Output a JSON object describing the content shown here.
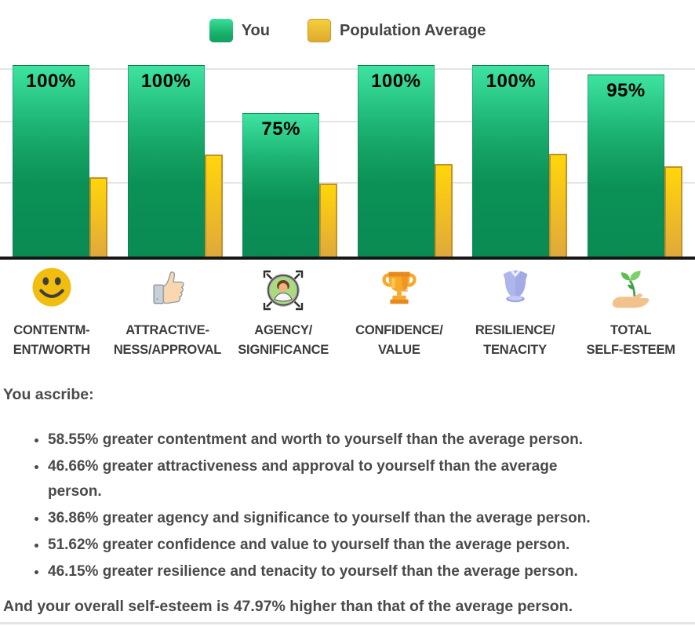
{
  "legend": {
    "you_label": "You",
    "avg_label": "Population Average"
  },
  "chart_data": {
    "type": "bar",
    "categories": [
      "Contentment/Worth",
      "Attractiveness/Approval",
      "Agency/Significance",
      "Confidence/Value",
      "Resilience/Tenacity",
      "Total Self-Esteem"
    ],
    "series": [
      {
        "name": "You",
        "color": "#12a263",
        "values": [
          100,
          100,
          75,
          100,
          100,
          95
        ],
        "value_labels": [
          "100%",
          "100%",
          "75%",
          "100%",
          "100%",
          "95%"
        ]
      },
      {
        "name": "Population Average",
        "color": "#eebc2e",
        "values": [
          41.45,
          53.34,
          38.14,
          48.38,
          53.85,
          47.03
        ],
        "value_labels": [
          "",
          "",
          "",
          "",
          "",
          ""
        ]
      }
    ],
    "ylim": [
      0,
      105
    ],
    "xlabel": "",
    "ylabel": "",
    "title": "",
    "grid": "horizontal",
    "legend_position": "top"
  },
  "category_display": [
    "CONTENTM-\nENT/WORTH",
    "ATTRACTIVE-\nNESS/APPROVAL",
    "AGENCY/\nSIGNIFICANCE",
    "CONFIDENCE/\nVALUE",
    "RESILIENCE/\nTENACITY",
    "TOTAL\nSELF-ESTEEM"
  ],
  "icons": [
    "smiley-icon",
    "thumbs-up-icon",
    "agency-person-icon",
    "trophy-icon",
    "armor-icon",
    "hand-plant-icon"
  ],
  "summary": {
    "heading": "You ascribe:",
    "bullets": [
      "58.55% greater contentment and worth to yourself than the average person.",
      "46.66% greater attractiveness and approval to yourself than the average\nperson.",
      "36.86% greater agency and significance to yourself than the average person.",
      "51.62% greater confidence and value to yourself than the average person.",
      "46.15% greater resilience and tenacity to yourself than the average person."
    ],
    "closing": "And your overall self-esteem is 47.97% higher than that of the average person."
  },
  "colors": {
    "you_bar_top": "#3ee3a0",
    "you_bar_bottom": "#0a8b53",
    "avg_bar_top": "#ffd60a",
    "avg_bar_bottom": "#dfa93c",
    "avg_bar_border": "#c3902b",
    "gridline": "#e4e4e4",
    "baseline": "#161616",
    "text": "#4a4a4a",
    "bar_value_label": "#000000"
  }
}
